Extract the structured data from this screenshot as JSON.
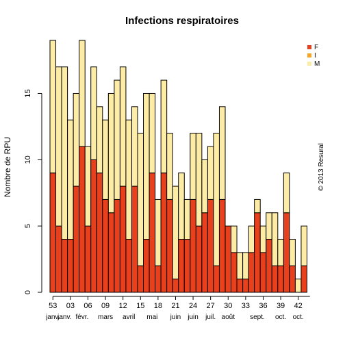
{
  "chart_data": {
    "type": "bar",
    "stacked": true,
    "title": "Infections respiratoires",
    "ylabel": "Nombre de RPU",
    "xlabel": "",
    "ylim": [
      0,
      19
    ],
    "yticks": [
      0,
      5,
      10,
      15
    ],
    "copyright": "© 2013 Resural",
    "legend_position": "top-right",
    "weeks": [
      53,
      1,
      2,
      3,
      4,
      5,
      6,
      7,
      8,
      9,
      10,
      11,
      12,
      13,
      14,
      15,
      16,
      17,
      18,
      19,
      20,
      21,
      22,
      23,
      24,
      25,
      26,
      27,
      28,
      29,
      30,
      31,
      32,
      33,
      34,
      35,
      36,
      37,
      38,
      39,
      40,
      41,
      42,
      43,
      44
    ],
    "week_tick_labels": [
      "53",
      "03",
      "06",
      "09",
      "12",
      "15",
      "18",
      "21",
      "24",
      "27",
      "30",
      "33",
      "36",
      "39",
      "42"
    ],
    "month_labels": [
      {
        "label": "janv.",
        "week_index": 0
      },
      {
        "label": "janv.",
        "week_index": 2
      },
      {
        "label": "févr.",
        "week_index": 5
      },
      {
        "label": "mars",
        "week_index": 9
      },
      {
        "label": "avril",
        "week_index": 13
      },
      {
        "label": "mai",
        "week_index": 17
      },
      {
        "label": "juin",
        "week_index": 21
      },
      {
        "label": "juin",
        "week_index": 24
      },
      {
        "label": "juil.",
        "week_index": 27
      },
      {
        "label": "août",
        "week_index": 30
      },
      {
        "label": "sept.",
        "week_index": 35
      },
      {
        "label": "oct.",
        "week_index": 39
      },
      {
        "label": "oct.",
        "week_index": 42
      }
    ],
    "series": [
      {
        "name": "F",
        "color": "#e8401c",
        "values": [
          9,
          5,
          4,
          4,
          8,
          11,
          5,
          10,
          9,
          7,
          6,
          7,
          8,
          4,
          8,
          2,
          4,
          9,
          2,
          9,
          7,
          1,
          4,
          4,
          7,
          5,
          6,
          7,
          2,
          7,
          5,
          3,
          1,
          1,
          3,
          6,
          3,
          4,
          2,
          2,
          6,
          2,
          0,
          2,
          0
        ]
      },
      {
        "name": "I",
        "color": "#f5a623",
        "values": [
          0,
          0,
          0,
          0,
          0,
          0,
          0,
          0,
          0,
          0,
          0,
          0,
          0,
          0,
          0,
          0,
          0,
          0,
          0,
          0,
          0,
          0,
          0,
          0,
          0,
          0,
          0,
          0,
          0,
          0,
          0,
          0,
          0,
          0,
          0,
          0,
          0,
          0,
          0,
          0,
          0,
          0,
          0,
          0,
          0
        ]
      },
      {
        "name": "M",
        "color": "#fdeca6",
        "values": [
          10,
          12,
          13,
          9,
          7,
          8,
          6,
          7,
          5,
          6,
          9,
          9,
          9,
          9,
          6,
          10,
          11,
          6,
          5,
          7,
          5,
          7,
          5,
          3,
          5,
          7,
          4,
          4,
          10,
          7,
          0,
          2,
          2,
          2,
          2,
          1,
          2,
          2,
          4,
          2,
          3,
          2,
          1,
          3,
          0
        ]
      }
    ]
  }
}
